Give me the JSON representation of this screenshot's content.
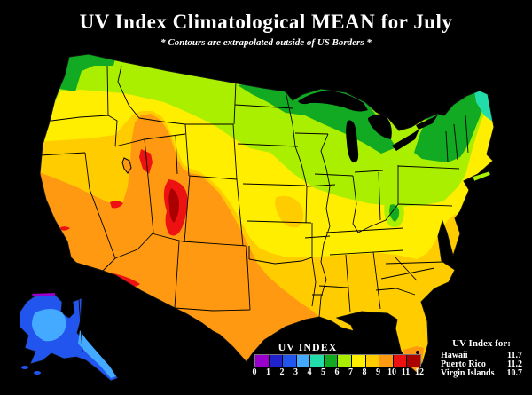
{
  "title": "UV Index Climatological MEAN for July",
  "subtitle": "* Contours are extrapolated outside of US Borders *",
  "legend": {
    "title": "UV INDEX",
    "ticks": [
      "0",
      "1",
      "2",
      "3",
      "4",
      "5",
      "6",
      "7",
      "8",
      "9",
      "10",
      "11",
      "12"
    ],
    "colors": [
      "#9900cc",
      "#2222cc",
      "#2255ee",
      "#44aaff",
      "#22ddaa",
      "#11aa22",
      "#aaee00",
      "#ffee00",
      "#ffcc00",
      "#ff9911",
      "#ee1111",
      "#aa0000"
    ]
  },
  "islands": {
    "title": "UV Index for:",
    "rows": [
      {
        "name": "Hawaii",
        "value": "11.7"
      },
      {
        "name": "Puerto Rico",
        "value": "11.2"
      },
      {
        "name": "Virgin Islands",
        "value": "10.7"
      }
    ]
  },
  "map": {
    "units": "UV Index",
    "range": [
      0,
      12
    ],
    "colors": {
      "background": "#000000",
      "purple": "#9900cc",
      "dark_blue": "#2222cc",
      "blue": "#2255ee",
      "light_blue": "#44aaff",
      "mint": "#22ddaa",
      "green": "#11aa22",
      "chartreuse": "#aaee00",
      "yellow": "#ffee00",
      "amber": "#ffcc00",
      "orange": "#ff9911",
      "red": "#ee1111",
      "dark_red": "#aa0000",
      "lake": "#000000",
      "border": "#000000"
    }
  }
}
